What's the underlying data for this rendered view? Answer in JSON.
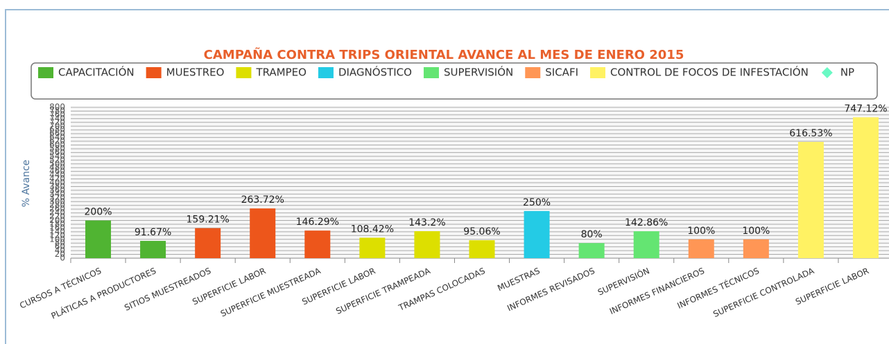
{
  "chart_data": {
    "type": "bar",
    "title": "CAMPAÑA CONTRA TRIPS ORIENTAL AVANCE AL MES DE ENERO 2015",
    "y_label": "% Avance",
    "categories": [
      "CURSOS A TÉCNICOS",
      "PLÁTICAS A PRODUCTORES",
      "SITIOS MUESTREADOS",
      "SUPERFICIE LABOR",
      "SUPERFICIE MUESTREADA",
      "SUPERFICIE LABOR",
      "SUPERFICIE TRAMPEADA",
      "TRAMPAS COLOCADAS",
      "MUESTRAS",
      "INFORMES REVISADOS",
      "SUPERVISIÓN",
      "INFORMES FINANCIEROS",
      "INFORMES TÉCNICOS",
      "SUPERFICIE CONTROLADA",
      "SUPERFICIE LABOR"
    ],
    "series": [
      {
        "name": "CAPACITACIÓN",
        "color": "#50b432",
        "values": [
          200,
          91.67,
          null,
          null,
          null,
          null,
          null,
          null,
          null,
          null,
          null,
          null,
          null,
          null,
          null
        ],
        "value_labels": [
          "200%",
          "91.67%",
          null,
          null,
          null,
          null,
          null,
          null,
          null,
          null,
          null,
          null,
          null,
          null,
          null
        ]
      },
      {
        "name": "MUESTREO",
        "color": "#ed561b",
        "values": [
          null,
          null,
          159.21,
          263.72,
          146.29,
          null,
          null,
          null,
          null,
          null,
          null,
          null,
          null,
          null,
          null
        ],
        "value_labels": [
          null,
          null,
          "159.21%",
          "263.72%",
          "146.29%",
          null,
          null,
          null,
          null,
          null,
          null,
          null,
          null,
          null,
          null
        ]
      },
      {
        "name": "TRAMPEO",
        "color": "#dddf00",
        "values": [
          null,
          null,
          null,
          null,
          null,
          108.42,
          143.2,
          95.06,
          null,
          null,
          null,
          null,
          null,
          null,
          null
        ],
        "value_labels": [
          null,
          null,
          null,
          null,
          null,
          "108.42%",
          "143.2%",
          "95.06%",
          null,
          null,
          null,
          null,
          null,
          null,
          null
        ]
      },
      {
        "name": "DIAGNÓSTICO",
        "color": "#24cbe5",
        "values": [
          null,
          null,
          null,
          null,
          null,
          null,
          null,
          null,
          250,
          null,
          null,
          null,
          null,
          null,
          null
        ],
        "value_labels": [
          null,
          null,
          null,
          null,
          null,
          null,
          null,
          null,
          "250%",
          null,
          null,
          null,
          null,
          null,
          null
        ]
      },
      {
        "name": "SUPERVISIÓN",
        "color": "#64e572",
        "values": [
          null,
          null,
          null,
          null,
          null,
          null,
          null,
          null,
          null,
          80,
          142.86,
          null,
          null,
          null,
          null
        ],
        "value_labels": [
          null,
          null,
          null,
          null,
          null,
          null,
          null,
          null,
          null,
          "80%",
          "142.86%",
          null,
          null,
          null,
          null
        ]
      },
      {
        "name": "SICAFI",
        "color": "#ff9655",
        "values": [
          null,
          null,
          null,
          null,
          null,
          null,
          null,
          null,
          null,
          null,
          null,
          100,
          100,
          null,
          null
        ],
        "value_labels": [
          null,
          null,
          null,
          null,
          null,
          null,
          null,
          null,
          null,
          null,
          null,
          "100%",
          "100%",
          null,
          null
        ]
      },
      {
        "name": "CONTROL DE FOCOS DE INFESTACIÓN",
        "color": "#fff263",
        "values": [
          null,
          null,
          null,
          null,
          null,
          null,
          null,
          null,
          null,
          null,
          null,
          null,
          null,
          616.53,
          747.12
        ],
        "value_labels": [
          null,
          null,
          null,
          null,
          null,
          null,
          null,
          null,
          null,
          null,
          null,
          null,
          null,
          "616.53%",
          "747.12%"
        ]
      },
      {
        "name": "NP",
        "color": "#6af9c4",
        "legend_marker": "diamond",
        "values": [
          null,
          null,
          null,
          null,
          null,
          null,
          null,
          null,
          null,
          null,
          null,
          null,
          null,
          null,
          null
        ]
      }
    ],
    "ylim": [
      0,
      800
    ],
    "yticks": [
      0,
      20,
      40,
      60,
      80,
      100,
      120,
      140,
      160,
      180,
      200,
      220,
      240,
      260,
      280,
      300,
      320,
      340,
      360,
      380,
      400,
      420,
      440,
      460,
      480,
      500,
      520,
      540,
      560,
      580,
      600,
      620,
      640,
      660,
      680,
      700,
      720,
      740,
      760,
      780,
      800
    ],
    "grid": true
  }
}
